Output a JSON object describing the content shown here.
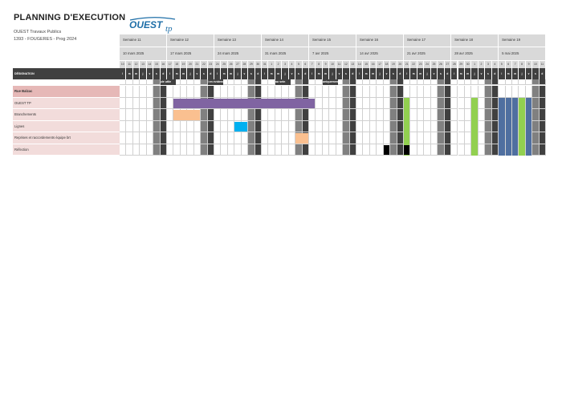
{
  "header": {
    "title": "PLANNING D'EXECUTION",
    "company": "OUEST Travaux Publics",
    "project": "1393 - FOUGERES - Prog 2024",
    "logo_text": "OUEST",
    "logo_sub": "tp"
  },
  "weeks": [
    {
      "label": "Semaine 11",
      "date": "10 mars 2025"
    },
    {
      "label": "Semaine 12",
      "date": "17 mars 2025"
    },
    {
      "label": "Semaine 13",
      "date": "24 mars 2025"
    },
    {
      "label": "Semaine 14",
      "date": "31 mars 2025"
    },
    {
      "label": "Semaine 15",
      "date": "7 avr 2025"
    },
    {
      "label": "Semaine 16",
      "date": "14 avr 2025"
    },
    {
      "label": "Semaine 17",
      "date": "21 avr 2025"
    },
    {
      "label": "Semaine 18",
      "date": "28 avr 2025"
    },
    {
      "label": "Semaine 19",
      "date": "5 mai 2025"
    }
  ],
  "day_numbers": [
    10,
    11,
    12,
    13,
    14,
    15,
    16,
    17,
    18,
    19,
    20,
    21,
    22,
    23,
    24,
    25,
    26,
    27,
    28,
    29,
    30,
    31,
    1,
    2,
    3,
    4,
    5,
    6,
    7,
    8,
    9,
    10,
    11,
    12,
    13,
    14,
    15,
    16,
    17,
    18,
    19,
    20,
    21,
    22,
    23,
    24,
    25,
    26,
    27,
    28,
    29,
    30,
    1,
    2,
    3,
    4,
    5,
    6,
    7,
    8,
    9,
    10,
    11
  ],
  "day_letters": [
    "l",
    "m",
    "m",
    "j",
    "v",
    "s",
    "d"
  ],
  "designation_label": "DÉSIGNATION",
  "rows": [
    "Rue Balzac",
    "OUEST TP",
    "Branchements",
    "Lignes",
    "Reprises et raccordements équipe brt",
    "Réfection"
  ],
  "day_notes": [
    {
      "day": 6,
      "text": "ule utile"
    },
    {
      "day": 13,
      "text": "i en évidence"
    },
    {
      "day": 23,
      "text": "au sein"
    },
    {
      "day": 30,
      "text": "uniquement"
    }
  ],
  "colors": {
    "ouest_tp": "#8064a2",
    "branchements": "#fac090",
    "lignes": "#00b0f0",
    "reprises": "#fac090",
    "refection": "#000000",
    "green": "#92d050",
    "blue": "#4f6fa0",
    "logo_blue": "#1f6fa8"
  },
  "bars": [
    {
      "row": 1,
      "start": 8,
      "end": 28,
      "color_key": "ouest_tp",
      "name": "ouest-tp-bar"
    },
    {
      "row": 2,
      "start": 8,
      "end": 11,
      "color_key": "branchements",
      "name": "branchements-bar"
    },
    {
      "row": 3,
      "start": 17,
      "end": 18,
      "color_key": "lignes",
      "name": "lignes-bar"
    },
    {
      "row": 4,
      "start": 26,
      "end": 27,
      "color_key": "reprises",
      "name": "reprises-bar"
    },
    {
      "row": 5,
      "start": 39,
      "end": 39,
      "color_key": "refection",
      "name": "refection-mark"
    },
    {
      "row": 5,
      "start": 42,
      "end": 42,
      "color_key": "refection",
      "name": "refection-mark"
    }
  ],
  "columns_fill": [
    {
      "day": 42,
      "from_row": 1,
      "to_row": 5,
      "color_key": "green"
    },
    {
      "day": 52,
      "from_row": 1,
      "to_row": 5,
      "color_key": "green"
    },
    {
      "day": 56,
      "from_row": 1,
      "to_row": 5,
      "color_key": "blue"
    },
    {
      "day": 57,
      "from_row": 1,
      "to_row": 5,
      "color_key": "blue"
    },
    {
      "day": 58,
      "from_row": 1,
      "to_row": 5,
      "color_key": "blue"
    },
    {
      "day": 59,
      "from_row": 1,
      "to_row": 5,
      "color_key": "green"
    },
    {
      "day": 60,
      "from_row": 1,
      "to_row": 5,
      "color_key": "blue"
    }
  ]
}
